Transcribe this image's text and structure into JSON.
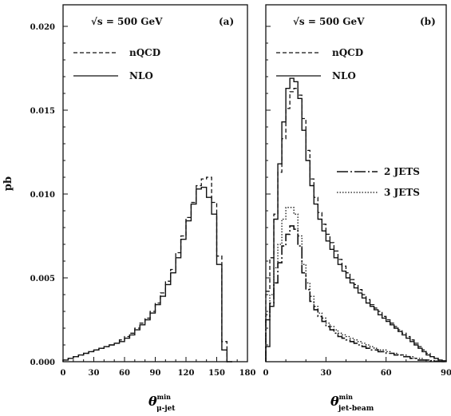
{
  "chart_data": [
    {
      "panel": "(a)",
      "type": "step",
      "energy_label": "√s = 500 GeV",
      "xlabel": "θ",
      "xlabel_sup": "min",
      "xlabel_sub": "μ-jet",
      "ylabel": "pb",
      "xlim": [
        0,
        180
      ],
      "ylim": [
        0,
        0.021
      ],
      "xticks": [
        "0",
        "30",
        "60",
        "90",
        "120",
        "150",
        "180"
      ],
      "yticks": [
        "0.000",
        "0.005",
        "0.010",
        "0.015",
        "0.020"
      ],
      "bin_width": 5,
      "bin_start": 0,
      "legend": [
        {
          "label": "nQCD",
          "style": "dashed"
        },
        {
          "label": "NLO",
          "style": "solid"
        }
      ],
      "series": [
        {
          "name": "nQCD",
          "style": "dashed",
          "values": [
            0.0001,
            0.0002,
            0.0003,
            0.0004,
            0.0005,
            0.0006,
            0.0007,
            0.0008,
            0.0009,
            0.001,
            0.0011,
            0.0013,
            0.0015,
            0.0017,
            0.002,
            0.0023,
            0.0026,
            0.003,
            0.0035,
            0.0041,
            0.0048,
            0.0055,
            0.0065,
            0.0075,
            0.0086,
            0.0095,
            0.0105,
            0.0109,
            0.011,
            0.0095,
            0.0063,
            0.0012,
            0
          ]
        },
        {
          "name": "NLO",
          "style": "solid",
          "values": [
            0.0001,
            0.0002,
            0.0003,
            0.0004,
            0.0005,
            0.0006,
            0.0007,
            0.0008,
            0.0009,
            0.001,
            0.0011,
            0.0012,
            0.0014,
            0.0016,
            0.0019,
            0.0022,
            0.0025,
            0.0029,
            0.0034,
            0.0039,
            0.0046,
            0.0053,
            0.0062,
            0.0073,
            0.0084,
            0.0094,
            0.0103,
            0.0104,
            0.0098,
            0.0088,
            0.0058,
            0.0007,
            0
          ]
        }
      ]
    },
    {
      "panel": "(b)",
      "type": "step",
      "energy_label": "√s = 500 GeV",
      "xlabel": "θ",
      "xlabel_sup": "min",
      "xlabel_sub": "jet-beam",
      "xlim": [
        0,
        90
      ],
      "ylim": [
        0,
        0.021
      ],
      "xticks": [
        "0",
        "30",
        "60",
        "90"
      ],
      "bin_width": 2,
      "bin_start": 0,
      "legend": [
        {
          "label": "nQCD",
          "style": "dashed"
        },
        {
          "label": "NLO",
          "style": "solid"
        },
        {
          "label": "2 JETS",
          "style": "dashdot"
        },
        {
          "label": "3 JETS",
          "style": "dotted"
        }
      ],
      "series": [
        {
          "name": "nQCD",
          "style": "dashed",
          "values": [
            0.0042,
            0.0062,
            0.0088,
            0.0113,
            0.0133,
            0.0151,
            0.0161,
            0.0163,
            0.0159,
            0.0145,
            0.0126,
            0.0109,
            0.0098,
            0.0089,
            0.0082,
            0.0076,
            0.0071,
            0.0066,
            0.0061,
            0.0057,
            0.0053,
            0.0049,
            0.0046,
            0.0043,
            0.004,
            0.0037,
            0.0034,
            0.0032,
            0.003,
            0.0027,
            0.0025,
            0.0023,
            0.0021,
            0.0019,
            0.0017,
            0.0015,
            0.0013,
            0.0011,
            0.0009,
            0.0007,
            0.0005,
            0.0003,
            0.0002,
            0.0001,
            5e-05
          ]
        },
        {
          "name": "NLO",
          "style": "solid",
          "values": [
            0.0009,
            0.0033,
            0.0085,
            0.0118,
            0.0143,
            0.0163,
            0.0169,
            0.0167,
            0.0157,
            0.0138,
            0.012,
            0.0105,
            0.0094,
            0.0085,
            0.0078,
            0.0072,
            0.0067,
            0.0062,
            0.0058,
            0.0054,
            0.005,
            0.0047,
            0.0044,
            0.0041,
            0.0038,
            0.0035,
            0.0033,
            0.0031,
            0.0028,
            0.0026,
            0.0024,
            0.0022,
            0.002,
            0.0018,
            0.0016,
            0.0014,
            0.0012,
            0.001,
            0.0008,
            0.0006,
            0.0004,
            0.0003,
            0.0002,
            0.0001,
            5e-05
          ]
        },
        {
          "name": "2 JETS",
          "style": "dashdot",
          "values": [
            0.0025,
            0.0035,
            0.0047,
            0.0059,
            0.0069,
            0.0076,
            0.0081,
            0.0079,
            0.0069,
            0.0053,
            0.0043,
            0.0036,
            0.0031,
            0.0027,
            0.0024,
            0.0021,
            0.0019,
            0.0017,
            0.0015,
            0.0014,
            0.0013,
            0.0012,
            0.0011,
            0.001,
            0.0009,
            0.0008,
            0.0007,
            0.0007,
            0.0006,
            0.0006,
            0.0005,
            0.0005,
            0.0004,
            0.0004,
            0.0003,
            0.0003,
            0.0002,
            0.0002,
            0.0001,
            0.0001,
            0.0001,
            5e-05,
            3e-05,
            2e-05,
            1e-05
          ]
        },
        {
          "name": "3 JETS",
          "style": "dotted",
          "values": [
            0.0028,
            0.004,
            0.0056,
            0.007,
            0.0085,
            0.0092,
            0.0092,
            0.0088,
            0.0075,
            0.0058,
            0.0047,
            0.0039,
            0.0033,
            0.0029,
            0.0026,
            0.0023,
            0.0021,
            0.0019,
            0.0017,
            0.0016,
            0.0015,
            0.0014,
            0.0013,
            0.0012,
            0.0011,
            0.001,
            0.0009,
            0.0008,
            0.0007,
            0.0007,
            0.0006,
            0.0005,
            0.0005,
            0.0004,
            0.0004,
            0.0003,
            0.0003,
            0.0002,
            0.0002,
            0.0001,
            0.0001,
            7e-05,
            4e-05,
            2e-05,
            1e-05
          ]
        }
      ]
    }
  ]
}
